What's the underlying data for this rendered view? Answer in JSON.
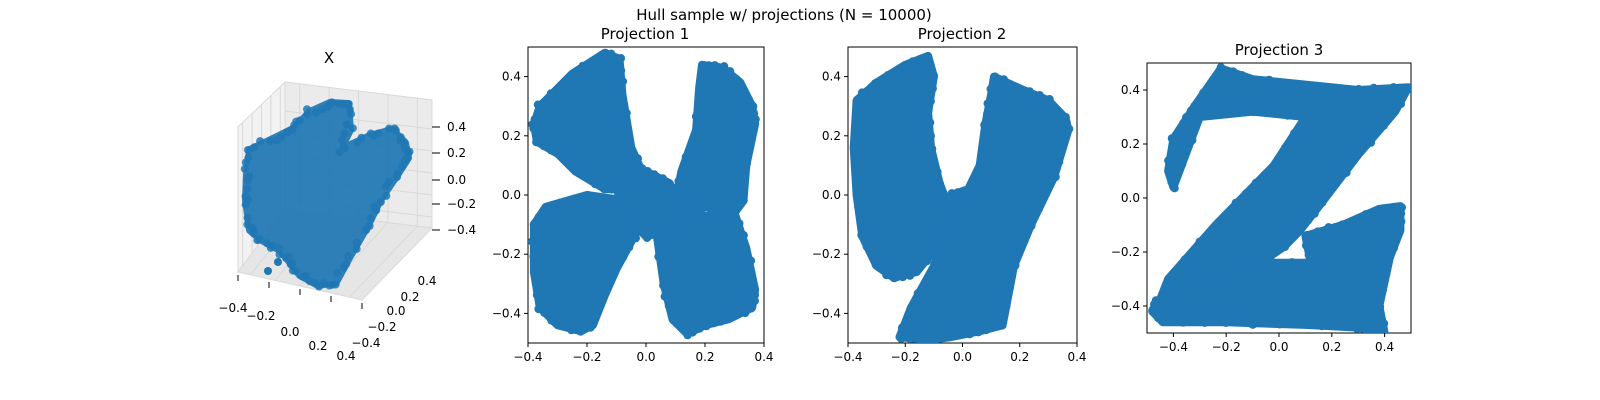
{
  "figure": {
    "suptitle": "Hull sample w/ projections (N = 10000)"
  },
  "colors": {
    "marker": "#1f77b4",
    "axis": "#000000",
    "pane": "#f2f2f2",
    "grid3d": "#d9d9d9"
  },
  "chart_data": [
    {
      "type": "scatter",
      "projection": "3d",
      "title": "X",
      "n_points": 10000,
      "x_ticks": [
        "−0.4",
        "−0.2",
        "0.0",
        "0.2",
        "0.4"
      ],
      "y_ticks": [
        "−0.4",
        "−0.2",
        "0.0",
        "0.2",
        "0.4"
      ],
      "z_ticks": [
        "−0.4",
        "−0.2",
        "0.0",
        "0.2",
        "0.4"
      ],
      "xlim": [
        -0.4,
        0.4
      ],
      "ylim": [
        -0.4,
        0.4
      ],
      "zlim": [
        -0.5,
        0.5
      ],
      "grid": true
    },
    {
      "type": "scatter",
      "title": "Projection 1",
      "shape": "X",
      "xlim": [
        -0.4,
        0.4
      ],
      "ylim": [
        -0.5,
        0.5
      ],
      "x_ticks": [
        "−0.4",
        "−0.2",
        "0.0",
        "0.2",
        "0.4"
      ],
      "y_ticks": [
        "−0.4",
        "−0.2",
        "0.0",
        "0.2",
        "0.4"
      ],
      "grid": false,
      "outline": [
        {
          "label": "upper-left arm",
          "points": [
            [
              -0.36,
              0.3
            ],
            [
              -0.32,
              0.34
            ],
            [
              -0.25,
              0.41
            ],
            [
              -0.14,
              0.48
            ],
            [
              -0.09,
              0.46
            ],
            [
              -0.08,
              0.34
            ],
            [
              -0.05,
              0.16
            ],
            [
              0.0,
              0.05
            ],
            [
              0.02,
              -0.02
            ],
            [
              -0.06,
              0.02
            ],
            [
              -0.14,
              0.02
            ],
            [
              -0.24,
              0.08
            ],
            [
              -0.3,
              0.14
            ],
            [
              -0.37,
              0.18
            ],
            [
              -0.38,
              0.24
            ]
          ]
        },
        {
          "label": "upper-right arm",
          "points": [
            [
              0.19,
              0.44
            ],
            [
              0.26,
              0.43
            ],
            [
              0.32,
              0.38
            ],
            [
              0.36,
              0.3
            ],
            [
              0.37,
              0.24
            ],
            [
              0.34,
              0.1
            ],
            [
              0.33,
              -0.02
            ],
            [
              0.3,
              -0.06
            ],
            [
              0.2,
              -0.04
            ],
            [
              0.12,
              -0.08
            ],
            [
              0.1,
              -0.02
            ],
            [
              0.12,
              0.08
            ],
            [
              0.17,
              0.22
            ],
            [
              0.18,
              0.36
            ]
          ]
        },
        {
          "label": "lower-left arm",
          "points": [
            [
              -0.38,
              -0.1
            ],
            [
              -0.34,
              -0.04
            ],
            [
              -0.2,
              0.0
            ],
            [
              -0.06,
              -0.02
            ],
            [
              0.0,
              -0.06
            ],
            [
              -0.04,
              -0.14
            ],
            [
              -0.1,
              -0.25
            ],
            [
              -0.14,
              -0.34
            ],
            [
              -0.18,
              -0.44
            ],
            [
              -0.22,
              -0.46
            ],
            [
              -0.3,
              -0.44
            ],
            [
              -0.36,
              -0.38
            ],
            [
              -0.38,
              -0.26
            ]
          ]
        },
        {
          "label": "lower-right arm",
          "points": [
            [
              0.02,
              -0.02
            ],
            [
              0.1,
              -0.04
            ],
            [
              0.2,
              -0.07
            ],
            [
              0.3,
              -0.06
            ],
            [
              0.34,
              -0.18
            ],
            [
              0.37,
              -0.32
            ],
            [
              0.36,
              -0.38
            ],
            [
              0.28,
              -0.42
            ],
            [
              0.2,
              -0.44
            ],
            [
              0.14,
              -0.47
            ],
            [
              0.09,
              -0.42
            ],
            [
              0.06,
              -0.3
            ],
            [
              0.04,
              -0.16
            ]
          ]
        },
        {
          "label": "center",
          "points": [
            [
              -0.1,
              0.02
            ],
            [
              0.0,
              0.08
            ],
            [
              0.08,
              0.04
            ],
            [
              0.12,
              -0.04
            ],
            [
              0.08,
              -0.12
            ],
            [
              0.0,
              -0.14
            ],
            [
              -0.06,
              -0.08
            ]
          ]
        }
      ]
    },
    {
      "type": "scatter",
      "title": "Projection 2",
      "shape": "Y",
      "xlim": [
        -0.4,
        0.4
      ],
      "ylim": [
        -0.5,
        0.5
      ],
      "x_ticks": [
        "−0.4",
        "−0.2",
        "0.0",
        "0.2",
        "0.4"
      ],
      "y_ticks": [
        "−0.4",
        "−0.2",
        "0.0",
        "0.2",
        "0.4"
      ],
      "grid": false,
      "outline": [
        {
          "label": "left arm",
          "points": [
            [
              -0.37,
              0.32
            ],
            [
              -0.3,
              0.38
            ],
            [
              -0.2,
              0.44
            ],
            [
              -0.12,
              0.47
            ],
            [
              -0.1,
              0.4
            ],
            [
              -0.12,
              0.28
            ],
            [
              -0.11,
              0.16
            ],
            [
              -0.08,
              0.04
            ],
            [
              -0.04,
              -0.06
            ],
            [
              -0.06,
              -0.14
            ],
            [
              -0.16,
              -0.26
            ],
            [
              -0.24,
              -0.28
            ],
            [
              -0.3,
              -0.24
            ],
            [
              -0.35,
              -0.14
            ],
            [
              -0.37,
              0.0
            ],
            [
              -0.38,
              0.16
            ]
          ]
        },
        {
          "label": "right arm and stem",
          "points": [
            [
              0.11,
              0.4
            ],
            [
              0.2,
              0.36
            ],
            [
              0.3,
              0.32
            ],
            [
              0.36,
              0.26
            ],
            [
              0.37,
              0.22
            ],
            [
              0.32,
              0.06
            ],
            [
              0.24,
              -0.1
            ],
            [
              0.18,
              -0.24
            ],
            [
              0.16,
              -0.34
            ],
            [
              0.14,
              -0.44
            ],
            [
              0.06,
              -0.46
            ],
            [
              -0.04,
              -0.48
            ],
            [
              -0.12,
              -0.49
            ],
            [
              -0.22,
              -0.48
            ],
            [
              -0.18,
              -0.38
            ],
            [
              -0.1,
              -0.24
            ],
            [
              -0.06,
              -0.1
            ],
            [
              -0.04,
              0.0
            ],
            [
              0.02,
              0.02
            ],
            [
              0.06,
              0.1
            ],
            [
              0.08,
              0.24
            ],
            [
              0.1,
              0.34
            ]
          ]
        }
      ]
    },
    {
      "type": "scatter",
      "title": "Projection 3",
      "shape": "Z",
      "xlim": [
        -0.5,
        0.5
      ],
      "ylim": [
        -0.5,
        0.5
      ],
      "x_ticks": [
        "−0.4",
        "−0.2",
        "0.0",
        "0.2",
        "0.4"
      ],
      "y_ticks": [
        "−0.4",
        "−0.2",
        "0.0",
        "0.2",
        "0.4"
      ],
      "grid": false,
      "outline": [
        {
          "label": "top bar and diagonal",
          "points": [
            [
              -0.36,
              0.28
            ],
            [
              -0.32,
              0.34
            ],
            [
              -0.22,
              0.48
            ],
            [
              -0.1,
              0.44
            ],
            [
              0.1,
              0.42
            ],
            [
              0.3,
              0.4
            ],
            [
              0.49,
              0.41
            ],
            [
              0.44,
              0.32
            ],
            [
              0.3,
              0.16
            ],
            [
              0.16,
              -0.02
            ],
            [
              0.08,
              -0.12
            ],
            [
              0.02,
              -0.18
            ],
            [
              -0.1,
              -0.26
            ],
            [
              -0.22,
              -0.32
            ],
            [
              -0.36,
              -0.36
            ],
            [
              -0.46,
              -0.4
            ],
            [
              -0.42,
              -0.3
            ],
            [
              -0.24,
              -0.1
            ],
            [
              -0.12,
              0.02
            ],
            [
              -0.02,
              0.12
            ],
            [
              0.1,
              0.3
            ],
            [
              -0.1,
              0.32
            ],
            [
              -0.3,
              0.3
            ],
            [
              -0.4,
              0.04
            ],
            [
              -0.42,
              0.1
            ],
            [
              -0.4,
              0.22
            ]
          ]
        },
        {
          "label": "bottom bar",
          "points": [
            [
              -0.48,
              -0.42
            ],
            [
              -0.44,
              -0.46
            ],
            [
              -0.2,
              -0.46
            ],
            [
              0.1,
              -0.47
            ],
            [
              0.3,
              -0.48
            ],
            [
              0.4,
              -0.5
            ],
            [
              0.38,
              -0.4
            ],
            [
              0.42,
              -0.22
            ],
            [
              0.46,
              -0.12
            ],
            [
              0.46,
              -0.03
            ],
            [
              0.38,
              -0.04
            ],
            [
              0.24,
              -0.1
            ],
            [
              0.1,
              -0.14
            ],
            [
              0.12,
              -0.24
            ],
            [
              -0.1,
              -0.24
            ],
            [
              -0.3,
              -0.3
            ],
            [
              -0.46,
              -0.38
            ]
          ]
        }
      ]
    }
  ]
}
